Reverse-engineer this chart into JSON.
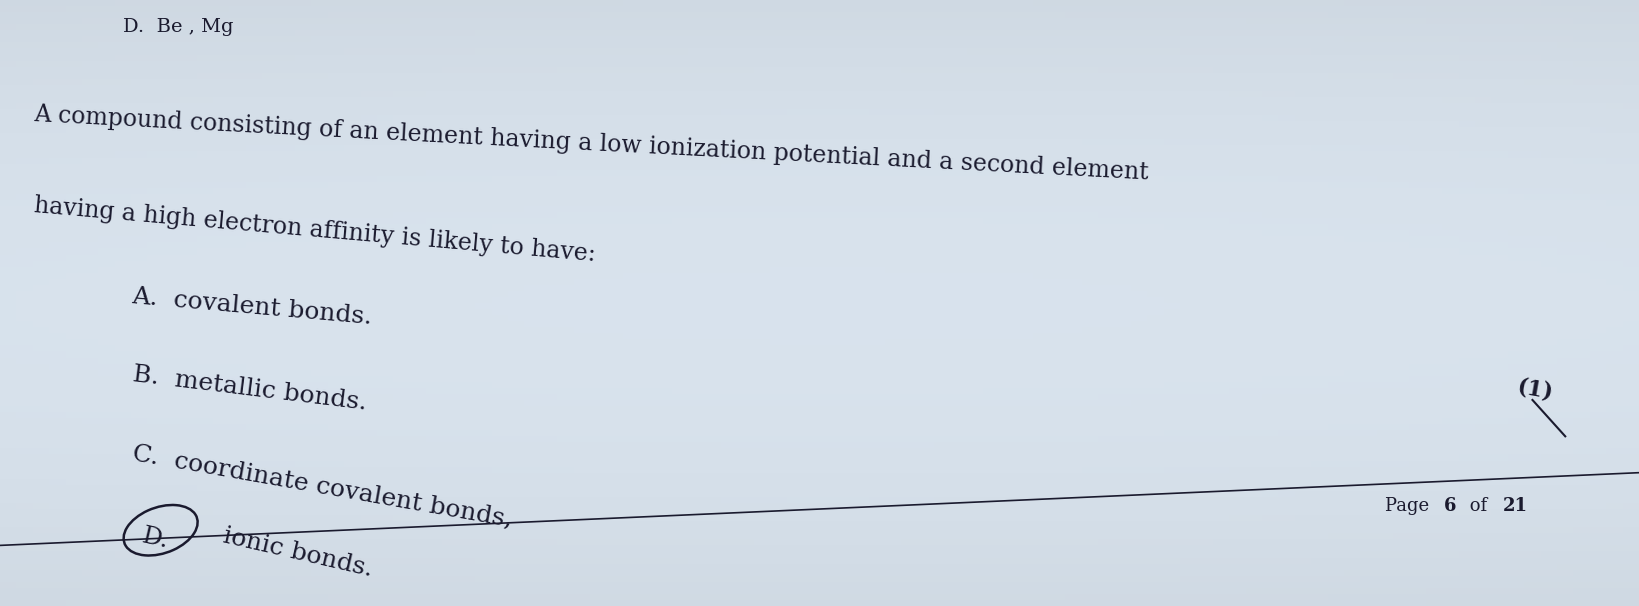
{
  "background_color": "#cdd5e0",
  "top_text": "D.  Be , Mg",
  "question_line1": "A compound consisting of an element having a low ionization potential and a second element",
  "question_line2": "having a high electron affinity is likely to have:",
  "options": [
    {
      "label": "A.",
      "text": "covalent bonds.",
      "circled": false
    },
    {
      "label": "B.",
      "text": "metallic bonds.",
      "circled": false
    },
    {
      "label": "C.",
      "text": "coordinate covalent bonds,",
      "circled": false
    },
    {
      "label": "D.",
      "text": "ionic bonds.",
      "circled": true
    }
  ],
  "annotation": "(1)",
  "page_text": "Page ",
  "page_bold": "6",
  "page_text2": " of ",
  "page_bold2": "21",
  "text_color": "#1a1a2e",
  "line_color": "#1a1a2e",
  "font_size_top": 14,
  "font_size_question": 17,
  "font_size_options": 18,
  "font_size_page": 13,
  "font_size_annotation": 16
}
